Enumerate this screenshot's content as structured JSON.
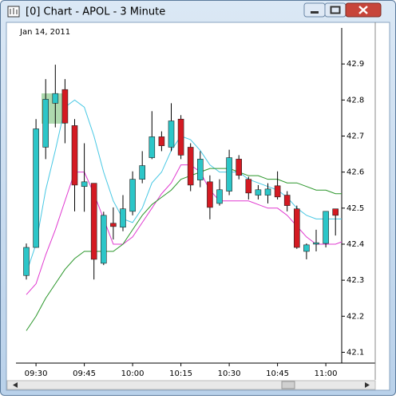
{
  "window": {
    "title": "[0]  Chart - APOL - 3 Minute"
  },
  "chart_data": {
    "type": "candlestick",
    "subtitle": "Jan 14, 2011",
    "categories": [
      null,
      "09:30",
      null,
      null,
      null,
      null,
      "09:45",
      null,
      null,
      null,
      null,
      "10:00",
      null,
      null,
      null,
      null,
      "10:15",
      null,
      null,
      null,
      null,
      "10:30",
      null,
      null,
      null,
      null,
      "10:45",
      null,
      null,
      null,
      null,
      "11:00",
      null,
      null
    ],
    "open": [
      42.313,
      42.391,
      42.669,
      42.791,
      42.829,
      42.729,
      42.56,
      42.569,
      42.347,
      42.458,
      42.447,
      42.491,
      42.58,
      42.64,
      42.698,
      42.669,
      42.747,
      42.669,
      42.578,
      42.573,
      42.513,
      42.547,
      42.636,
      42.58,
      42.536,
      42.536,
      42.562,
      42.536,
      42.498,
      42.38,
      42.4,
      42.402,
      42.498,
      42.473
    ],
    "high": [
      42.402,
      42.747,
      42.858,
      42.898,
      42.858,
      42.747,
      42.68,
      42.569,
      42.49,
      42.502,
      42.536,
      42.602,
      42.658,
      42.769,
      42.713,
      42.791,
      42.758,
      42.68,
      42.658,
      42.591,
      42.58,
      42.662,
      42.647,
      42.587,
      42.564,
      42.569,
      42.602,
      42.547,
      42.507,
      42.402,
      42.44,
      42.491,
      42.498,
      42.5
    ],
    "low": [
      42.302,
      42.39,
      42.636,
      42.724,
      42.68,
      42.491,
      42.49,
      42.302,
      42.342,
      42.413,
      42.436,
      42.48,
      42.569,
      42.636,
      42.658,
      42.658,
      42.636,
      42.547,
      42.558,
      42.469,
      42.507,
      42.536,
      42.58,
      42.524,
      42.524,
      42.513,
      42.524,
      42.491,
      42.387,
      42.358,
      42.38,
      42.391,
      42.424,
      42.46
    ],
    "close": [
      42.391,
      42.72,
      42.802,
      42.818,
      42.736,
      42.564,
      42.573,
      42.358,
      42.48,
      42.449,
      42.498,
      42.58,
      42.618,
      42.698,
      42.673,
      42.742,
      42.647,
      42.564,
      42.636,
      42.502,
      42.551,
      42.64,
      42.591,
      42.542,
      42.551,
      42.553,
      42.531,
      42.507,
      42.391,
      42.398,
      42.404,
      42.491,
      42.48,
      42.484
    ],
    "up_color": "#2cc6c8",
    "down_color": "#d41a22",
    "series": [
      {
        "color": "#48c8e4",
        "values": [
          42.32,
          42.4,
          42.55,
          42.66,
          42.78,
          42.8,
          42.78,
          42.7,
          42.6,
          42.52,
          42.47,
          42.46,
          42.5,
          42.57,
          42.6,
          42.66,
          42.7,
          42.69,
          42.66,
          42.62,
          42.6,
          42.6,
          42.6,
          42.58,
          42.57,
          42.56,
          42.55,
          42.53,
          42.5,
          42.48,
          42.47,
          42.47,
          42.47,
          42.47
        ]
      },
      {
        "color": "#e03ad0",
        "values": [
          42.26,
          42.29,
          42.37,
          42.44,
          42.52,
          42.6,
          42.6,
          42.54,
          42.47,
          42.4,
          42.4,
          42.42,
          42.46,
          42.5,
          42.54,
          42.57,
          42.62,
          42.62,
          42.6,
          42.55,
          42.52,
          42.52,
          42.52,
          42.52,
          42.51,
          42.5,
          42.5,
          42.48,
          42.45,
          42.42,
          42.4,
          42.4,
          42.4,
          42.41
        ]
      },
      {
        "color": "#2a962a",
        "values": [
          42.16,
          42.2,
          42.25,
          42.29,
          42.33,
          42.36,
          42.38,
          42.38,
          42.38,
          42.38,
          42.4,
          42.44,
          42.48,
          42.51,
          42.53,
          42.55,
          42.58,
          42.59,
          42.6,
          42.61,
          42.61,
          42.61,
          42.6,
          42.59,
          42.59,
          42.58,
          42.58,
          42.57,
          42.57,
          42.56,
          42.55,
          42.55,
          42.54,
          42.54
        ]
      }
    ],
    "ylim": [
      42.07,
      43.0
    ],
    "yticks": [
      42.1,
      42.2,
      42.3,
      42.4,
      42.5,
      42.6,
      42.7,
      42.8,
      42.9
    ]
  }
}
